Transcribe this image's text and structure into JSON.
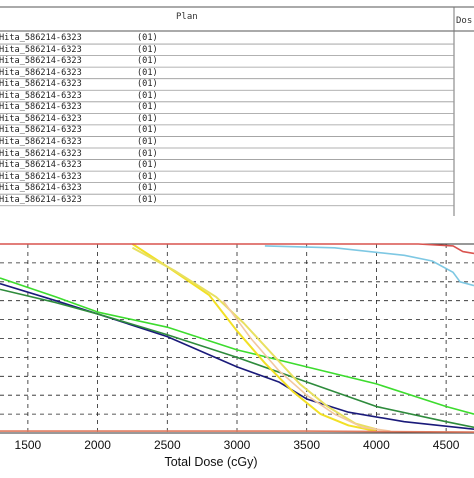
{
  "table": {
    "header_plan": "Plan",
    "header_dose": "Dos",
    "rows": [
      {
        "plan": "Hita_586214-6323",
        "code": "(01)"
      },
      {
        "plan": "Hita_586214-6323",
        "code": "(01)"
      },
      {
        "plan": "Hita_586214-6323",
        "code": "(01)"
      },
      {
        "plan": "Hita_586214-6323",
        "code": "(01)"
      },
      {
        "plan": "Hita_586214-6323",
        "code": "(01)"
      },
      {
        "plan": "Hita_586214-6323",
        "code": "(01)"
      },
      {
        "plan": "Hita_586214-6323",
        "code": "(01)"
      },
      {
        "plan": "Hita_586214-6323",
        "code": "(01)"
      },
      {
        "plan": "Hita_586214-6323",
        "code": "(01)"
      },
      {
        "plan": "Hita_586214-6323",
        "code": "(01)"
      },
      {
        "plan": "Hita_586214-6323",
        "code": "(01)"
      },
      {
        "plan": "Hita_586214-6323",
        "code": "(01)"
      },
      {
        "plan": "Hita_586214-6323",
        "code": "(01)"
      },
      {
        "plan": "Hita_586214-6323",
        "code": "(01)"
      },
      {
        "plan": "Hita_586214-6323",
        "code": "(01)"
      }
    ]
  },
  "chart_data": {
    "type": "line",
    "title": "",
    "xlabel": "Total Dose (cGy)",
    "ylabel": "",
    "xlim": [
      1300,
      4700
    ],
    "ylim": [
      0,
      100
    ],
    "xticks": [
      1500,
      2000,
      2500,
      3000,
      3500,
      4000,
      4500
    ],
    "grid": true,
    "series": [
      {
        "color": "#1a1a7a",
        "points": [
          [
            1300,
            79
          ],
          [
            1700,
            70
          ],
          [
            2000,
            63
          ],
          [
            2500,
            51
          ],
          [
            3000,
            35
          ],
          [
            3300,
            27
          ],
          [
            3500,
            18
          ],
          [
            3800,
            11
          ],
          [
            4200,
            6
          ],
          [
            4700,
            2
          ]
        ]
      },
      {
        "color": "#2e8b3c",
        "points": [
          [
            1300,
            76
          ],
          [
            1700,
            69
          ],
          [
            2000,
            63
          ],
          [
            2500,
            52
          ],
          [
            3000,
            40
          ],
          [
            3500,
            27
          ],
          [
            4000,
            14
          ],
          [
            4500,
            6
          ],
          [
            4700,
            3
          ]
        ]
      },
      {
        "color": "#3ddc2e",
        "points": [
          [
            1300,
            82
          ],
          [
            1700,
            72
          ],
          [
            2000,
            64
          ],
          [
            2500,
            56
          ],
          [
            3000,
            44
          ],
          [
            3500,
            35
          ],
          [
            4000,
            26
          ],
          [
            4500,
            14
          ],
          [
            4700,
            10
          ]
        ]
      },
      {
        "color": "#f2e025",
        "points": [
          [
            2250,
            100
          ],
          [
            2500,
            88
          ],
          [
            2800,
            73
          ],
          [
            3000,
            54
          ],
          [
            3200,
            37
          ],
          [
            3400,
            22
          ],
          [
            3600,
            10
          ],
          [
            3800,
            4
          ],
          [
            4000,
            1
          ]
        ]
      },
      {
        "color": "#e8e060",
        "points": [
          [
            2250,
            98
          ],
          [
            2550,
            86
          ],
          [
            2850,
            72
          ],
          [
            3050,
            58
          ],
          [
            3250,
            42
          ],
          [
            3450,
            26
          ],
          [
            3650,
            14
          ],
          [
            3850,
            5
          ],
          [
            4000,
            2
          ]
        ]
      },
      {
        "color": "#f2c8a0",
        "points": [
          [
            2900,
            70
          ],
          [
            3100,
            50
          ],
          [
            3300,
            33
          ],
          [
            3500,
            20
          ],
          [
            3700,
            10
          ],
          [
            3900,
            3
          ],
          [
            4100,
            1
          ]
        ]
      },
      {
        "color": "#7ec8e3",
        "points": [
          [
            3200,
            99
          ],
          [
            3700,
            98
          ],
          [
            4200,
            94
          ],
          [
            4400,
            91
          ],
          [
            4550,
            85
          ],
          [
            4600,
            80
          ],
          [
            4700,
            78
          ]
        ]
      },
      {
        "color": "#d9534f",
        "points": [
          [
            1300,
            100
          ],
          [
            4300,
            100
          ],
          [
            4550,
            99
          ],
          [
            4620,
            96
          ],
          [
            4700,
            95
          ]
        ]
      },
      {
        "color": "#e07a5f",
        "points": [
          [
            1300,
            1
          ],
          [
            2500,
            1
          ],
          [
            3500,
            1
          ],
          [
            4700,
            0.5
          ]
        ]
      }
    ]
  }
}
